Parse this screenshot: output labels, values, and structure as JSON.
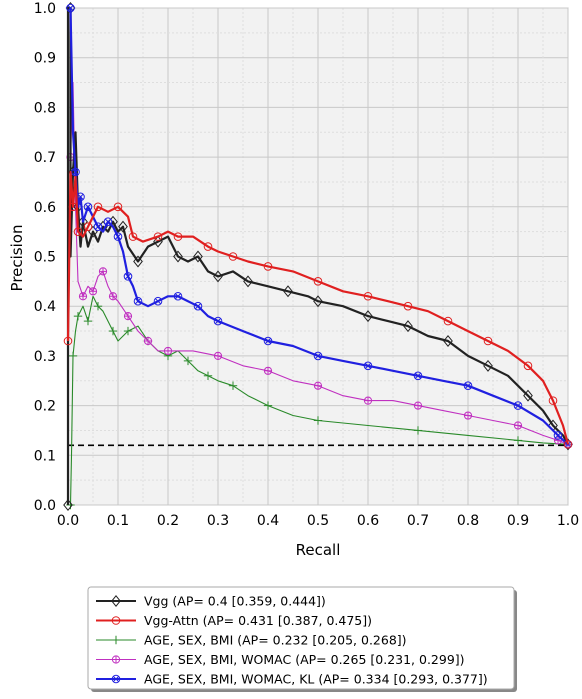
{
  "chart_data": {
    "type": "line",
    "title": "",
    "xlabel": "Recall",
    "ylabel": "Precision",
    "xlim": [
      0,
      1
    ],
    "ylim": [
      0,
      1
    ],
    "grid": true,
    "legend_position": "bottom",
    "x_ticks": [
      "0.0",
      "0.1",
      "0.2",
      "0.3",
      "0.4",
      "0.5",
      "0.6",
      "0.7",
      "0.8",
      "0.9",
      "1.0"
    ],
    "y_ticks": [
      "0.0",
      "0.1",
      "0.2",
      "0.3",
      "0.4",
      "0.5",
      "0.6",
      "0.7",
      "0.8",
      "0.9",
      "1.0"
    ],
    "baseline": {
      "y": 0.12,
      "style": "dashed",
      "color": "#000000"
    },
    "series": [
      {
        "name": "Vgg (AP= 0.4 [0.359, 0.444])",
        "color": "#222222",
        "marker": "diamond",
        "points": [
          [
            0,
            0
          ],
          [
            0,
            1.0
          ],
          [
            0.005,
            1.0
          ],
          [
            0.005,
            0.5
          ],
          [
            0.01,
            0.67
          ],
          [
            0.015,
            0.75
          ],
          [
            0.02,
            0.6
          ],
          [
            0.025,
            0.52
          ],
          [
            0.03,
            0.57
          ],
          [
            0.04,
            0.52
          ],
          [
            0.05,
            0.55
          ],
          [
            0.06,
            0.53
          ],
          [
            0.07,
            0.56
          ],
          [
            0.08,
            0.55
          ],
          [
            0.09,
            0.57
          ],
          [
            0.1,
            0.55
          ],
          [
            0.11,
            0.56
          ],
          [
            0.12,
            0.52
          ],
          [
            0.14,
            0.49
          ],
          [
            0.16,
            0.52
          ],
          [
            0.18,
            0.53
          ],
          [
            0.2,
            0.54
          ],
          [
            0.22,
            0.5
          ],
          [
            0.24,
            0.49
          ],
          [
            0.26,
            0.5
          ],
          [
            0.28,
            0.47
          ],
          [
            0.3,
            0.46
          ],
          [
            0.33,
            0.47
          ],
          [
            0.36,
            0.45
          ],
          [
            0.4,
            0.44
          ],
          [
            0.44,
            0.43
          ],
          [
            0.48,
            0.42
          ],
          [
            0.5,
            0.41
          ],
          [
            0.55,
            0.4
          ],
          [
            0.6,
            0.38
          ],
          [
            0.64,
            0.37
          ],
          [
            0.68,
            0.36
          ],
          [
            0.72,
            0.34
          ],
          [
            0.76,
            0.33
          ],
          [
            0.8,
            0.3
          ],
          [
            0.84,
            0.28
          ],
          [
            0.88,
            0.26
          ],
          [
            0.92,
            0.22
          ],
          [
            0.95,
            0.19
          ],
          [
            0.97,
            0.16
          ],
          [
            0.99,
            0.14
          ],
          [
            1.0,
            0.122
          ]
        ]
      },
      {
        "name": "Vgg-Attn (AP= 0.431 [0.387, 0.475])",
        "color": "#e02020",
        "marker": "circle",
        "points": [
          [
            0,
            0.33
          ],
          [
            0.005,
            0.67
          ],
          [
            0.01,
            0.6
          ],
          [
            0.015,
            0.66
          ],
          [
            0.02,
            0.55
          ],
          [
            0.03,
            0.54
          ],
          [
            0.04,
            0.56
          ],
          [
            0.05,
            0.58
          ],
          [
            0.06,
            0.6
          ],
          [
            0.08,
            0.59
          ],
          [
            0.1,
            0.6
          ],
          [
            0.12,
            0.58
          ],
          [
            0.13,
            0.54
          ],
          [
            0.15,
            0.53
          ],
          [
            0.18,
            0.54
          ],
          [
            0.2,
            0.55
          ],
          [
            0.22,
            0.54
          ],
          [
            0.25,
            0.54
          ],
          [
            0.28,
            0.52
          ],
          [
            0.3,
            0.51
          ],
          [
            0.33,
            0.5
          ],
          [
            0.36,
            0.49
          ],
          [
            0.4,
            0.48
          ],
          [
            0.45,
            0.47
          ],
          [
            0.5,
            0.45
          ],
          [
            0.55,
            0.43
          ],
          [
            0.6,
            0.42
          ],
          [
            0.64,
            0.41
          ],
          [
            0.68,
            0.4
          ],
          [
            0.72,
            0.39
          ],
          [
            0.76,
            0.37
          ],
          [
            0.8,
            0.35
          ],
          [
            0.84,
            0.33
          ],
          [
            0.88,
            0.31
          ],
          [
            0.92,
            0.28
          ],
          [
            0.95,
            0.25
          ],
          [
            0.97,
            0.21
          ],
          [
            0.99,
            0.16
          ],
          [
            1.0,
            0.122
          ]
        ]
      },
      {
        "name": "AGE, SEX, BMI  (AP= 0.232 [0.205, 0.268])",
        "color": "#2a8a2a",
        "marker": "plus",
        "points": [
          [
            0.005,
            0.0
          ],
          [
            0.007,
            0.1
          ],
          [
            0.01,
            0.3
          ],
          [
            0.015,
            0.35
          ],
          [
            0.02,
            0.38
          ],
          [
            0.03,
            0.4
          ],
          [
            0.04,
            0.37
          ],
          [
            0.05,
            0.42
          ],
          [
            0.06,
            0.4
          ],
          [
            0.07,
            0.39
          ],
          [
            0.09,
            0.35
          ],
          [
            0.1,
            0.33
          ],
          [
            0.12,
            0.35
          ],
          [
            0.14,
            0.36
          ],
          [
            0.16,
            0.33
          ],
          [
            0.18,
            0.31
          ],
          [
            0.2,
            0.3
          ],
          [
            0.22,
            0.31
          ],
          [
            0.24,
            0.29
          ],
          [
            0.26,
            0.27
          ],
          [
            0.28,
            0.26
          ],
          [
            0.3,
            0.25
          ],
          [
            0.33,
            0.24
          ],
          [
            0.36,
            0.22
          ],
          [
            0.4,
            0.2
          ],
          [
            0.45,
            0.18
          ],
          [
            0.5,
            0.17
          ],
          [
            0.6,
            0.16
          ],
          [
            0.7,
            0.15
          ],
          [
            0.8,
            0.14
          ],
          [
            0.9,
            0.13
          ],
          [
            0.95,
            0.125
          ],
          [
            1.0,
            0.122
          ]
        ]
      },
      {
        "name": "AGE, SEX, BMI, WOMAC (AP= 0.265 [0.231, 0.299])",
        "color": "#c030c0",
        "marker": "crossbox",
        "points": [
          [
            0.005,
            0.7
          ],
          [
            0.01,
            0.85
          ],
          [
            0.015,
            0.6
          ],
          [
            0.02,
            0.45
          ],
          [
            0.03,
            0.42
          ],
          [
            0.04,
            0.44
          ],
          [
            0.05,
            0.43
          ],
          [
            0.06,
            0.46
          ],
          [
            0.07,
            0.47
          ],
          [
            0.08,
            0.44
          ],
          [
            0.09,
            0.42
          ],
          [
            0.1,
            0.41
          ],
          [
            0.12,
            0.38
          ],
          [
            0.14,
            0.35
          ],
          [
            0.16,
            0.33
          ],
          [
            0.18,
            0.31
          ],
          [
            0.2,
            0.31
          ],
          [
            0.25,
            0.31
          ],
          [
            0.3,
            0.3
          ],
          [
            0.35,
            0.28
          ],
          [
            0.4,
            0.27
          ],
          [
            0.45,
            0.25
          ],
          [
            0.5,
            0.24
          ],
          [
            0.55,
            0.22
          ],
          [
            0.6,
            0.21
          ],
          [
            0.65,
            0.21
          ],
          [
            0.7,
            0.2
          ],
          [
            0.75,
            0.19
          ],
          [
            0.8,
            0.18
          ],
          [
            0.85,
            0.17
          ],
          [
            0.9,
            0.16
          ],
          [
            0.95,
            0.14
          ],
          [
            0.98,
            0.13
          ],
          [
            1.0,
            0.122
          ]
        ]
      },
      {
        "name": "AGE, SEX, BMI, WOMAC, KL (AP= 0.334 [0.293, 0.377])",
        "color": "#2020e0",
        "marker": "circlecross",
        "points": [
          [
            0.005,
            1.0
          ],
          [
            0.01,
            0.75
          ],
          [
            0.015,
            0.67
          ],
          [
            0.02,
            0.6
          ],
          [
            0.025,
            0.62
          ],
          [
            0.03,
            0.57
          ],
          [
            0.04,
            0.6
          ],
          [
            0.05,
            0.58
          ],
          [
            0.06,
            0.56
          ],
          [
            0.07,
            0.55
          ],
          [
            0.08,
            0.57
          ],
          [
            0.09,
            0.56
          ],
          [
            0.1,
            0.54
          ],
          [
            0.11,
            0.51
          ],
          [
            0.12,
            0.46
          ],
          [
            0.13,
            0.44
          ],
          [
            0.14,
            0.41
          ],
          [
            0.16,
            0.4
          ],
          [
            0.18,
            0.41
          ],
          [
            0.2,
            0.42
          ],
          [
            0.22,
            0.42
          ],
          [
            0.24,
            0.41
          ],
          [
            0.26,
            0.4
          ],
          [
            0.28,
            0.38
          ],
          [
            0.3,
            0.37
          ],
          [
            0.35,
            0.35
          ],
          [
            0.4,
            0.33
          ],
          [
            0.45,
            0.32
          ],
          [
            0.5,
            0.3
          ],
          [
            0.55,
            0.29
          ],
          [
            0.6,
            0.28
          ],
          [
            0.65,
            0.27
          ],
          [
            0.7,
            0.26
          ],
          [
            0.75,
            0.25
          ],
          [
            0.8,
            0.24
          ],
          [
            0.85,
            0.22
          ],
          [
            0.9,
            0.2
          ],
          [
            0.95,
            0.17
          ],
          [
            0.98,
            0.14
          ],
          [
            1.0,
            0.122
          ]
        ]
      }
    ]
  }
}
